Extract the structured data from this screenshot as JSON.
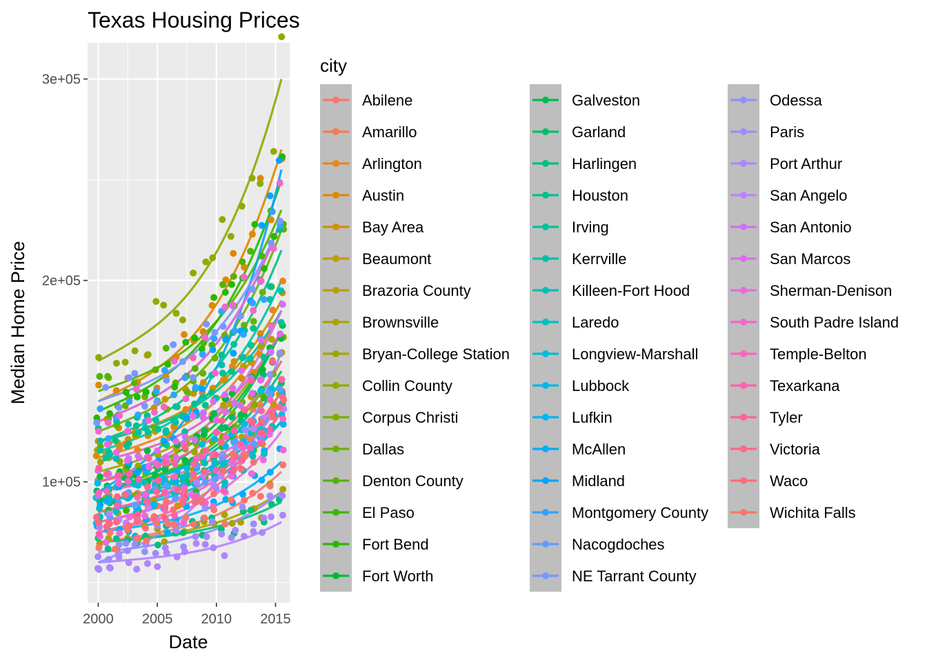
{
  "chart_data": {
    "type": "scatter",
    "title": "Texas Housing Prices",
    "xlabel": "Date",
    "ylabel": "Median Home Price",
    "xlim": [
      1999.1,
      2016.2
    ],
    "ylim": [
      40000,
      318000
    ],
    "x_ticks": [
      2000,
      2005,
      2010,
      2015
    ],
    "x_tick_labels": [
      "2000",
      "2005",
      "2010",
      "2015"
    ],
    "y_ticks": [
      100000,
      200000,
      300000
    ],
    "y_tick_labels": [
      "1e+05",
      "2e+05",
      "3e+05"
    ],
    "grid": true,
    "legend_title": "city",
    "legend_position": "right",
    "series": [
      {
        "name": "Abilene",
        "start": 85000,
        "end": 145000,
        "color": "#F8766D"
      },
      {
        "name": "Amarillo",
        "start": 95000,
        "end": 150000,
        "color": "#F07E4D"
      },
      {
        "name": "Arlington",
        "start": 112000,
        "end": 185000,
        "color": "#E7851E"
      },
      {
        "name": "Austin",
        "start": 140000,
        "end": 265000,
        "color": "#DC8A00"
      },
      {
        "name": "Bay Area",
        "start": 120000,
        "end": 190000,
        "color": "#D09000"
      },
      {
        "name": "Beaumont",
        "start": 85000,
        "end": 140000,
        "color": "#C49A00"
      },
      {
        "name": "Brazoria County",
        "start": 110000,
        "end": 175000,
        "color": "#B79F00"
      },
      {
        "name": "Brownsville",
        "start": 70000,
        "end": 95000,
        "color": "#A9A300"
      },
      {
        "name": "Bryan-College Station",
        "start": 105000,
        "end": 175000,
        "color": "#9CA700"
      },
      {
        "name": "Collin County",
        "start": 160000,
        "end": 300000,
        "color": "#8DAB00"
      },
      {
        "name": "Corpus Christi",
        "start": 95000,
        "end": 160000,
        "color": "#7CAE00"
      },
      {
        "name": "Dallas",
        "start": 125000,
        "end": 225000,
        "color": "#67B200"
      },
      {
        "name": "Denton County",
        "start": 145000,
        "end": 235000,
        "color": "#53B400"
      },
      {
        "name": "El Paso",
        "start": 85000,
        "end": 145000,
        "color": "#3BB700"
      },
      {
        "name": "Fort Bend",
        "start": 135000,
        "end": 250000,
        "color": "#24B900"
      },
      {
        "name": "Fort Worth",
        "start": 100000,
        "end": 175000,
        "color": "#00BA38"
      },
      {
        "name": "Galveston",
        "start": 95000,
        "end": 175000,
        "color": "#00BC4E"
      },
      {
        "name": "Garland",
        "start": 95000,
        "end": 155000,
        "color": "#00BE67"
      },
      {
        "name": "Harlingen",
        "start": 70000,
        "end": 90000,
        "color": "#00BF7D"
      },
      {
        "name": "Houston",
        "start": 120000,
        "end": 215000,
        "color": "#00C08B"
      },
      {
        "name": "Irving",
        "start": 120000,
        "end": 185000,
        "color": "#00C19A"
      },
      {
        "name": "Kerrville",
        "start": 115000,
        "end": 200000,
        "color": "#00C1A8"
      },
      {
        "name": "Killeen-Fort Hood",
        "start": 90000,
        "end": 130000,
        "color": "#00C0B5"
      },
      {
        "name": "Laredo",
        "start": 85000,
        "end": 140000,
        "color": "#00BFC4"
      },
      {
        "name": "Longview-Marshall",
        "start": 90000,
        "end": 140000,
        "color": "#00BCD8"
      },
      {
        "name": "Lubbock",
        "start": 95000,
        "end": 150000,
        "color": "#00B9E3"
      },
      {
        "name": "Lufkin",
        "start": 85000,
        "end": 130000,
        "color": "#00B4EF"
      },
      {
        "name": "McAllen",
        "start": 75000,
        "end": 110000,
        "color": "#00ADFA"
      },
      {
        "name": "Midland",
        "start": 95000,
        "end": 255000,
        "color": "#00A5FF"
      },
      {
        "name": "Montgomery County",
        "start": 130000,
        "end": 230000,
        "color": "#35A2FF"
      },
      {
        "name": "Nacogdoches",
        "start": 85000,
        "end": 145000,
        "color": "#619CFF"
      },
      {
        "name": "NE Tarrant County",
        "start": 140000,
        "end": 230000,
        "color": "#7A97FF"
      },
      {
        "name": "Odessa",
        "start": 60000,
        "end": 165000,
        "color": "#8F91FF"
      },
      {
        "name": "Paris",
        "start": 65000,
        "end": 95000,
        "color": "#A08AFF"
      },
      {
        "name": "Port Arthur",
        "start": 60000,
        "end": 80000,
        "color": "#AF84FF"
      },
      {
        "name": "San Angelo",
        "start": 80000,
        "end": 140000,
        "color": "#BF80FF"
      },
      {
        "name": "San Antonio",
        "start": 100000,
        "end": 185000,
        "color": "#D070F5"
      },
      {
        "name": "San Marcos",
        "start": 110000,
        "end": 175000,
        "color": "#E16AEA"
      },
      {
        "name": "Sherman-Denison",
        "start": 75000,
        "end": 125000,
        "color": "#EC69DC"
      },
      {
        "name": "South Padre Island",
        "start": 130000,
        "end": 230000,
        "color": "#F365CF"
      },
      {
        "name": "Temple-Belton",
        "start": 95000,
        "end": 140000,
        "color": "#F865C0"
      },
      {
        "name": "Texarkana",
        "start": 80000,
        "end": 135000,
        "color": "#FC61AF"
      },
      {
        "name": "Tyler",
        "start": 100000,
        "end": 160000,
        "color": "#FF619E"
      },
      {
        "name": "Victoria",
        "start": 85000,
        "end": 145000,
        "color": "#FF6689"
      },
      {
        "name": "Waco",
        "start": 75000,
        "end": 135000,
        "color": "#FD6D76"
      },
      {
        "name": "Wichita Falls",
        "start": 70000,
        "end": 105000,
        "color": "#F8766D"
      }
    ]
  }
}
